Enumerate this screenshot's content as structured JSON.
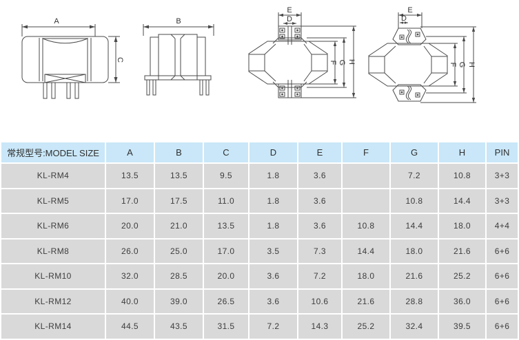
{
  "drawings": {
    "front_view": {
      "dim_top": "A",
      "dim_right": "C"
    },
    "side_view": {
      "dim_top": "B"
    },
    "top_view_pins": {
      "dim_e": "E",
      "dim_d": "D",
      "dim_f": "F",
      "dim_g": "G",
      "dim_h": "H"
    },
    "top_view_smd": {
      "dim_e": "E",
      "dim_d": "D",
      "dim_f": "F",
      "dim_g": "G",
      "dim_h": "H"
    }
  },
  "table": {
    "header": {
      "model_col": "常规型号:MODEL SIZE",
      "columns": [
        "A",
        "B",
        "C",
        "D",
        "E",
        "F",
        "G",
        "H",
        "PIN"
      ]
    },
    "rows": [
      {
        "model": "KL-RM4",
        "values": [
          "13.5",
          "13.5",
          "9.5",
          "1.8",
          "3.6",
          "",
          "7.2",
          "10.8",
          "3+3"
        ]
      },
      {
        "model": "KL-RM5",
        "values": [
          "17.0",
          "17.5",
          "11.0",
          "1.8",
          "3.6",
          "",
          "10.8",
          "14.4",
          "3+3"
        ]
      },
      {
        "model": "KL-RM6",
        "values": [
          "20.0",
          "21.0",
          "13.5",
          "1.8",
          "3.6",
          "10.8",
          "14.4",
          "18.0",
          "4+4"
        ]
      },
      {
        "model": "KL-RM8",
        "values": [
          "26.0",
          "25.0",
          "17.0",
          "3.5",
          "7.3",
          "14.4",
          "18.0",
          "21.6",
          "6+6"
        ]
      },
      {
        "model": "KL-RM10",
        "values": [
          "32.0",
          "28.5",
          "20.0",
          "3.6",
          "7.2",
          "18.0",
          "21.6",
          "25.2",
          "6+6"
        ]
      },
      {
        "model": "KL-RM12",
        "values": [
          "40.0",
          "39.0",
          "26.5",
          "3.6",
          "10.6",
          "21.6",
          "28.8",
          "36.0",
          "6+6"
        ]
      },
      {
        "model": "KL-RM14",
        "values": [
          "44.5",
          "43.5",
          "31.5",
          "7.2",
          "14.3",
          "25.2",
          "32.4",
          "39.5",
          "6+6"
        ]
      }
    ],
    "colors": {
      "header_bg": "#c9e7f8",
      "header_border_top": "#5aa6db",
      "row_bg": "#d9d9d9",
      "cell_text": "#3d3d3d"
    }
  }
}
